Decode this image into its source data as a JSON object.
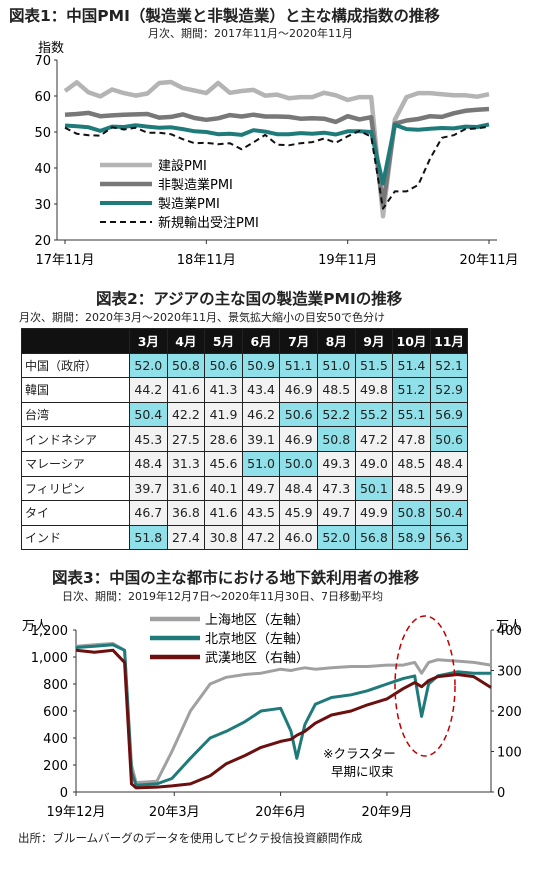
{
  "chart1": {
    "title": "図表1：中国PMI（製造業と非製造業）と主な構成指数の推移",
    "subtitle": "月次、期間：2017年11月～2020年11月",
    "ylabel": "指数",
    "y_ticks": [
      "70",
      "60",
      "50",
      "40",
      "30",
      "20"
    ],
    "x_ticks": [
      "17年11月",
      "18年11月",
      "19年11月",
      "20年11月"
    ]
  },
  "chart2": {
    "title": "図表2：アジアの主な国の製造業PMIの推移",
    "subtitle": "月次、期間：2020年3月～2020年11月、景気拡大縮小の目安50で色分け"
  },
  "chart3": {
    "title": "図表3：中国の主な都市における地下鉄利用者の推移",
    "subtitle": "日次、期間：2019年12月7日～2020年11月30日、7日移動平均",
    "left_unit": "万人",
    "right_unit": "万人",
    "left_ticks": [
      "1,200",
      "1,000",
      "800",
      "600",
      "400",
      "200",
      "0"
    ],
    "right_ticks": [
      "400",
      "300",
      "200",
      "100",
      "0"
    ],
    "x_ticks": [
      "19年12月",
      "20年3月",
      "20年6月",
      "20年9月"
    ],
    "annotation_line1": "※クラスター",
    "annotation_line2": "早期に収束"
  },
  "source": "出所：ブルームバーグのデータを使用してピクテ投信投資顧問作成",
  "chart_data": [
    {
      "type": "line",
      "title": "図表1：中国PMI（製造業と非製造業）と主な構成指数の推移",
      "ylabel": "指数",
      "ylim": [
        20,
        70
      ],
      "x": [
        "2017-11",
        "2017-12",
        "2018-01",
        "2018-02",
        "2018-03",
        "2018-04",
        "2018-05",
        "2018-06",
        "2018-07",
        "2018-08",
        "2018-09",
        "2018-10",
        "2018-11",
        "2018-12",
        "2019-01",
        "2019-02",
        "2019-03",
        "2019-04",
        "2019-05",
        "2019-06",
        "2019-07",
        "2019-08",
        "2019-09",
        "2019-10",
        "2019-11",
        "2019-12",
        "2020-01",
        "2020-02",
        "2020-03",
        "2020-04",
        "2020-05",
        "2020-06",
        "2020-07",
        "2020-08",
        "2020-09",
        "2020-10",
        "2020-11"
      ],
      "legend_position": "lower-left",
      "series": [
        {
          "name": "建設PMI",
          "color": "#b4b4b4",
          "values": [
            61.4,
            63.8,
            61.0,
            59.9,
            61.8,
            60.8,
            60.1,
            60.7,
            63.6,
            63.9,
            62.2,
            61.5,
            60.8,
            63.6,
            60.9,
            61.4,
            61.7,
            60.1,
            60.4,
            59.4,
            59.7,
            59.7,
            60.9,
            60.2,
            58.9,
            59.7,
            59.7,
            26.6,
            53.4,
            59.7,
            60.8,
            60.8,
            60.5,
            60.2,
            60.2,
            59.8,
            60.5
          ]
        },
        {
          "name": "非製造業PMI",
          "color": "#787878",
          "values": [
            54.8,
            55.0,
            55.3,
            54.4,
            54.6,
            54.8,
            54.9,
            55.0,
            54.0,
            54.2,
            54.9,
            53.9,
            53.4,
            53.8,
            54.7,
            54.3,
            54.8,
            54.3,
            54.3,
            54.2,
            53.7,
            53.8,
            53.7,
            52.8,
            54.4,
            53.5,
            54.1,
            29.6,
            52.3,
            53.2,
            53.6,
            54.4,
            54.2,
            55.2,
            55.9,
            56.2,
            56.4
          ]
        },
        {
          "name": "製造業PMI",
          "color": "#1f7a7a",
          "values": [
            51.8,
            51.6,
            51.3,
            50.3,
            51.5,
            51.4,
            51.9,
            51.5,
            51.2,
            51.3,
            50.8,
            50.2,
            50.0,
            49.4,
            49.5,
            49.2,
            50.5,
            50.1,
            49.4,
            49.4,
            49.7,
            49.5,
            49.8,
            49.3,
            50.2,
            50.2,
            50.0,
            35.7,
            52.0,
            50.8,
            50.6,
            50.9,
            51.1,
            51.0,
            51.5,
            51.4,
            52.1
          ]
        },
        {
          "name": "新規輸出受注PMI",
          "color": "#111111",
          "values": [
            51.2,
            49.5,
            49.1,
            49.0,
            51.3,
            50.7,
            51.2,
            49.8,
            49.8,
            49.4,
            48.0,
            46.9,
            47.0,
            46.6,
            46.9,
            45.2,
            47.1,
            49.2,
            46.5,
            46.3,
            46.9,
            47.2,
            48.2,
            47.0,
            48.8,
            50.3,
            48.7,
            28.7,
            33.5,
            33.5,
            35.3,
            42.6,
            48.4,
            49.1,
            50.8,
            51.0,
            51.5
          ]
        }
      ]
    },
    {
      "type": "table",
      "title": "図表2：アジアの主な国の製造業PMIの推移",
      "threshold": 50,
      "columns": [
        "3月",
        "4月",
        "5月",
        "6月",
        "7月",
        "8月",
        "9月",
        "10月",
        "11月"
      ],
      "rows": [
        {
          "label": "中国（政府）",
          "values": [
            "52.0",
            "50.8",
            "50.6",
            "50.9",
            "51.1",
            "51.0",
            "51.5",
            "51.4",
            "52.1"
          ]
        },
        {
          "label": "韓国",
          "values": [
            "44.2",
            "41.6",
            "41.3",
            "43.4",
            "46.9",
            "48.5",
            "49.8",
            "51.2",
            "52.9"
          ]
        },
        {
          "label": "台湾",
          "values": [
            "50.4",
            "42.2",
            "41.9",
            "46.2",
            "50.6",
            "52.2",
            "55.2",
            "55.1",
            "56.9"
          ]
        },
        {
          "label": "インドネシア",
          "values": [
            "45.3",
            "27.5",
            "28.6",
            "39.1",
            "46.9",
            "50.8",
            "47.2",
            "47.8",
            "50.6"
          ]
        },
        {
          "label": "マレーシア",
          "values": [
            "48.4",
            "31.3",
            "45.6",
            "51.0",
            "50.0",
            "49.3",
            "49.0",
            "48.5",
            "48.4"
          ]
        },
        {
          "label": "フィリピン",
          "values": [
            "39.7",
            "31.6",
            "40.1",
            "49.7",
            "48.4",
            "47.3",
            "50.1",
            "48.5",
            "49.9"
          ]
        },
        {
          "label": "タイ",
          "values": [
            "46.7",
            "36.8",
            "41.6",
            "43.5",
            "45.9",
            "49.7",
            "49.9",
            "50.8",
            "50.4"
          ]
        },
        {
          "label": "インド",
          "values": [
            "51.8",
            "27.4",
            "30.8",
            "47.2",
            "46.0",
            "52.0",
            "56.8",
            "58.9",
            "56.3"
          ]
        }
      ]
    },
    {
      "type": "line",
      "title": "図表3：中国の主な都市における地下鉄利用者の推移",
      "ylim_left": [
        0,
        1200
      ],
      "ylim_right": [
        0,
        400
      ],
      "x_start": "2019-12-07",
      "x_end": "2020-11-30",
      "x": [
        "2019-12-07",
        "2019-12-23",
        "2020-01-08",
        "2020-01-18",
        "2020-01-24",
        "2020-01-28",
        "2020-02-15",
        "2020-02-28",
        "2020-03-15",
        "2020-04-01",
        "2020-04-15",
        "2020-05-01",
        "2020-05-15",
        "2020-06-01",
        "2020-06-10",
        "2020-06-15",
        "2020-06-22",
        "2020-07-01",
        "2020-07-15",
        "2020-08-01",
        "2020-08-15",
        "2020-09-01",
        "2020-09-15",
        "2020-09-25",
        "2020-10-01",
        "2020-10-07",
        "2020-10-15",
        "2020-11-01",
        "2020-11-15",
        "2020-11-30"
      ],
      "legend_position": "top-center",
      "series": [
        {
          "name": "上海地区（左軸）",
          "axis": "left",
          "color": "#a0a0a0",
          "values": [
            1080,
            1090,
            1100,
            1050,
            200,
            70,
            80,
            300,
            600,
            800,
            850,
            870,
            880,
            910,
            900,
            910,
            920,
            910,
            920,
            930,
            930,
            940,
            940,
            960,
            880,
            960,
            980,
            970,
            960,
            940
          ]
        },
        {
          "name": "北京地区（左軸）",
          "axis": "left",
          "color": "#1f7a7a",
          "values": [
            1070,
            1080,
            1090,
            1050,
            150,
            50,
            60,
            100,
            250,
            400,
            450,
            520,
            600,
            620,
            450,
            250,
            500,
            650,
            700,
            720,
            750,
            800,
            840,
            860,
            560,
            800,
            860,
            890,
            880,
            880
          ]
        },
        {
          "name": "武漢地区（右軸）",
          "axis": "right",
          "color": "#6b0f0f",
          "values": [
            350,
            345,
            350,
            320,
            20,
            10,
            12,
            15,
            20,
            40,
            70,
            90,
            110,
            125,
            130,
            140,
            150,
            170,
            190,
            200,
            215,
            230,
            255,
            270,
            260,
            275,
            285,
            290,
            285,
            258
          ]
        }
      ]
    }
  ]
}
